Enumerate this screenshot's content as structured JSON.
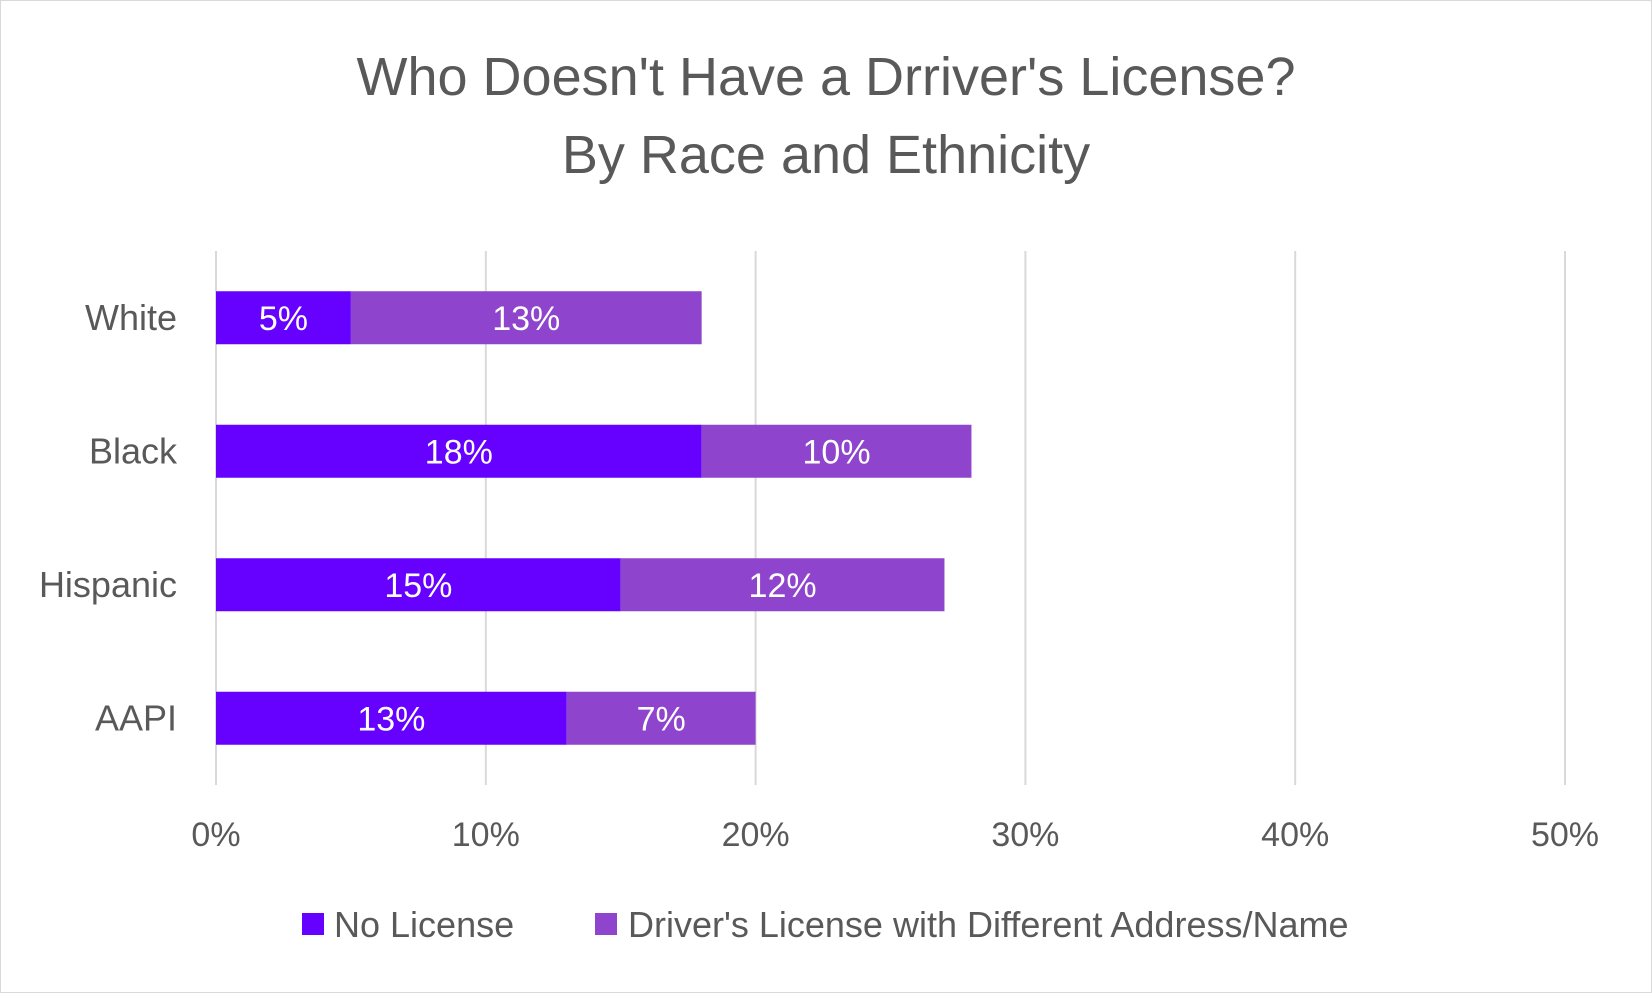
{
  "chart_data": {
    "type": "bar",
    "orientation": "horizontal",
    "stacked": true,
    "title_lines": [
      "Who Doesn't Have a Drriver's License?",
      "By Race and Ethnicity"
    ],
    "categories": [
      "White",
      "Black",
      "Hispanic",
      "AAPI"
    ],
    "series": [
      {
        "name": "No License",
        "values": [
          5,
          18,
          15,
          13
        ],
        "labels": [
          "5%",
          "18%",
          "15%",
          "13%"
        ],
        "color": "#6600ff"
      },
      {
        "name": "Driver's License with Different Address/Name",
        "values": [
          13,
          10,
          12,
          7
        ],
        "labels": [
          "13%",
          "10%",
          "12%",
          "7%"
        ],
        "color": "#8e44cc"
      }
    ],
    "x_ticks": [
      0,
      10,
      20,
      30,
      40,
      50
    ],
    "x_tick_labels": [
      "0%",
      "10%",
      "20%",
      "30%",
      "40%",
      "50%"
    ],
    "xlim": [
      0,
      50
    ],
    "grid": true,
    "legend_position": "bottom"
  }
}
